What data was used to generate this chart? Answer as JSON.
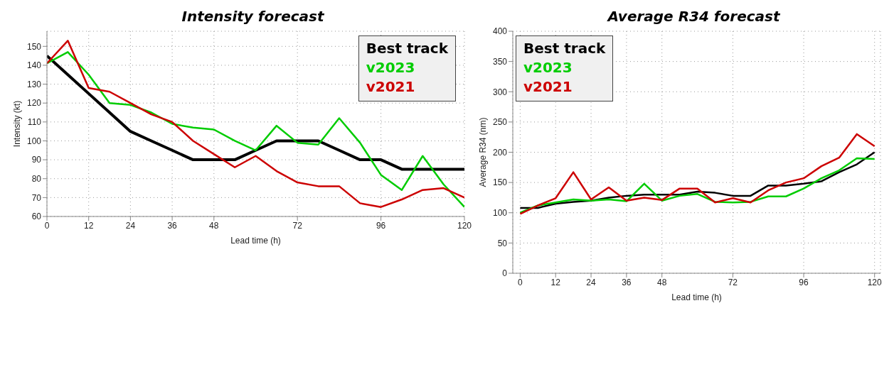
{
  "chart_data": [
    {
      "type": "line",
      "title": "Intensity forecast",
      "xlabel": "Lead time (h)",
      "ylabel": "Intensity (kt)",
      "x": [
        0,
        6,
        12,
        18,
        24,
        30,
        36,
        42,
        48,
        54,
        60,
        66,
        72,
        78,
        84,
        90,
        96,
        102,
        108,
        114,
        120
      ],
      "xlim": [
        0,
        120
      ],
      "xticks": [
        0,
        12,
        24,
        36,
        48,
        72,
        96,
        120
      ],
      "ylim": [
        60,
        158
      ],
      "yticks": [
        60,
        70,
        80,
        90,
        100,
        110,
        120,
        130,
        140,
        150
      ],
      "grid": true,
      "legend": "top right",
      "series": [
        {
          "name": "Best track",
          "color": "#000000",
          "values": [
            145,
            135,
            125,
            115,
            105,
            100,
            95,
            90,
            90,
            90,
            95,
            100,
            100,
            100,
            95,
            90,
            90,
            85,
            85,
            85,
            85
          ]
        },
        {
          "name": "v2023",
          "color": "#00cc00",
          "values": [
            141,
            147,
            135,
            120,
            119,
            115,
            109,
            107,
            106,
            100,
            95,
            108,
            99,
            98,
            112,
            99,
            82,
            74,
            92,
            77,
            65
          ]
        },
        {
          "name": "v2021",
          "color": "#cc0000",
          "values": [
            141,
            153,
            128,
            126,
            120,
            114,
            110,
            100,
            93,
            86,
            92,
            84,
            78,
            76,
            76,
            67,
            65,
            69,
            74,
            75,
            70
          ]
        }
      ]
    },
    {
      "type": "line",
      "title": "Average R34 forecast",
      "xlabel": "Lead time (h)",
      "ylabel": "Average R34 (nm)",
      "x": [
        0,
        6,
        12,
        18,
        24,
        30,
        36,
        42,
        48,
        54,
        60,
        66,
        72,
        78,
        84,
        90,
        96,
        102,
        108,
        114,
        120
      ],
      "xlim": [
        -2.5,
        122
      ],
      "xticks": [
        0,
        12,
        24,
        36,
        48,
        72,
        96,
        120
      ],
      "ylim": [
        0,
        400
      ],
      "yticks": [
        0,
        50,
        100,
        150,
        200,
        250,
        300,
        350,
        400
      ],
      "grid": true,
      "legend": "top left",
      "series": [
        {
          "name": "Best track",
          "color": "#000000",
          "values": [
            108,
            108,
            115,
            118,
            120,
            125,
            128,
            130,
            130,
            130,
            135,
            133,
            128,
            128,
            145,
            145,
            148,
            152,
            167,
            180,
            200
          ]
        },
        {
          "name": "v2023",
          "color": "#00cc00",
          "values": [
            100,
            112,
            117,
            122,
            120,
            122,
            119,
            148,
            120,
            128,
            131,
            118,
            117,
            118,
            127,
            127,
            140,
            157,
            170,
            190,
            189
          ]
        },
        {
          "name": "v2021",
          "color": "#cc0000",
          "values": [
            98,
            112,
            124,
            167,
            122,
            142,
            120,
            125,
            121,
            140,
            140,
            117,
            124,
            117,
            137,
            150,
            157,
            177,
            191,
            230,
            210
          ]
        }
      ]
    }
  ]
}
